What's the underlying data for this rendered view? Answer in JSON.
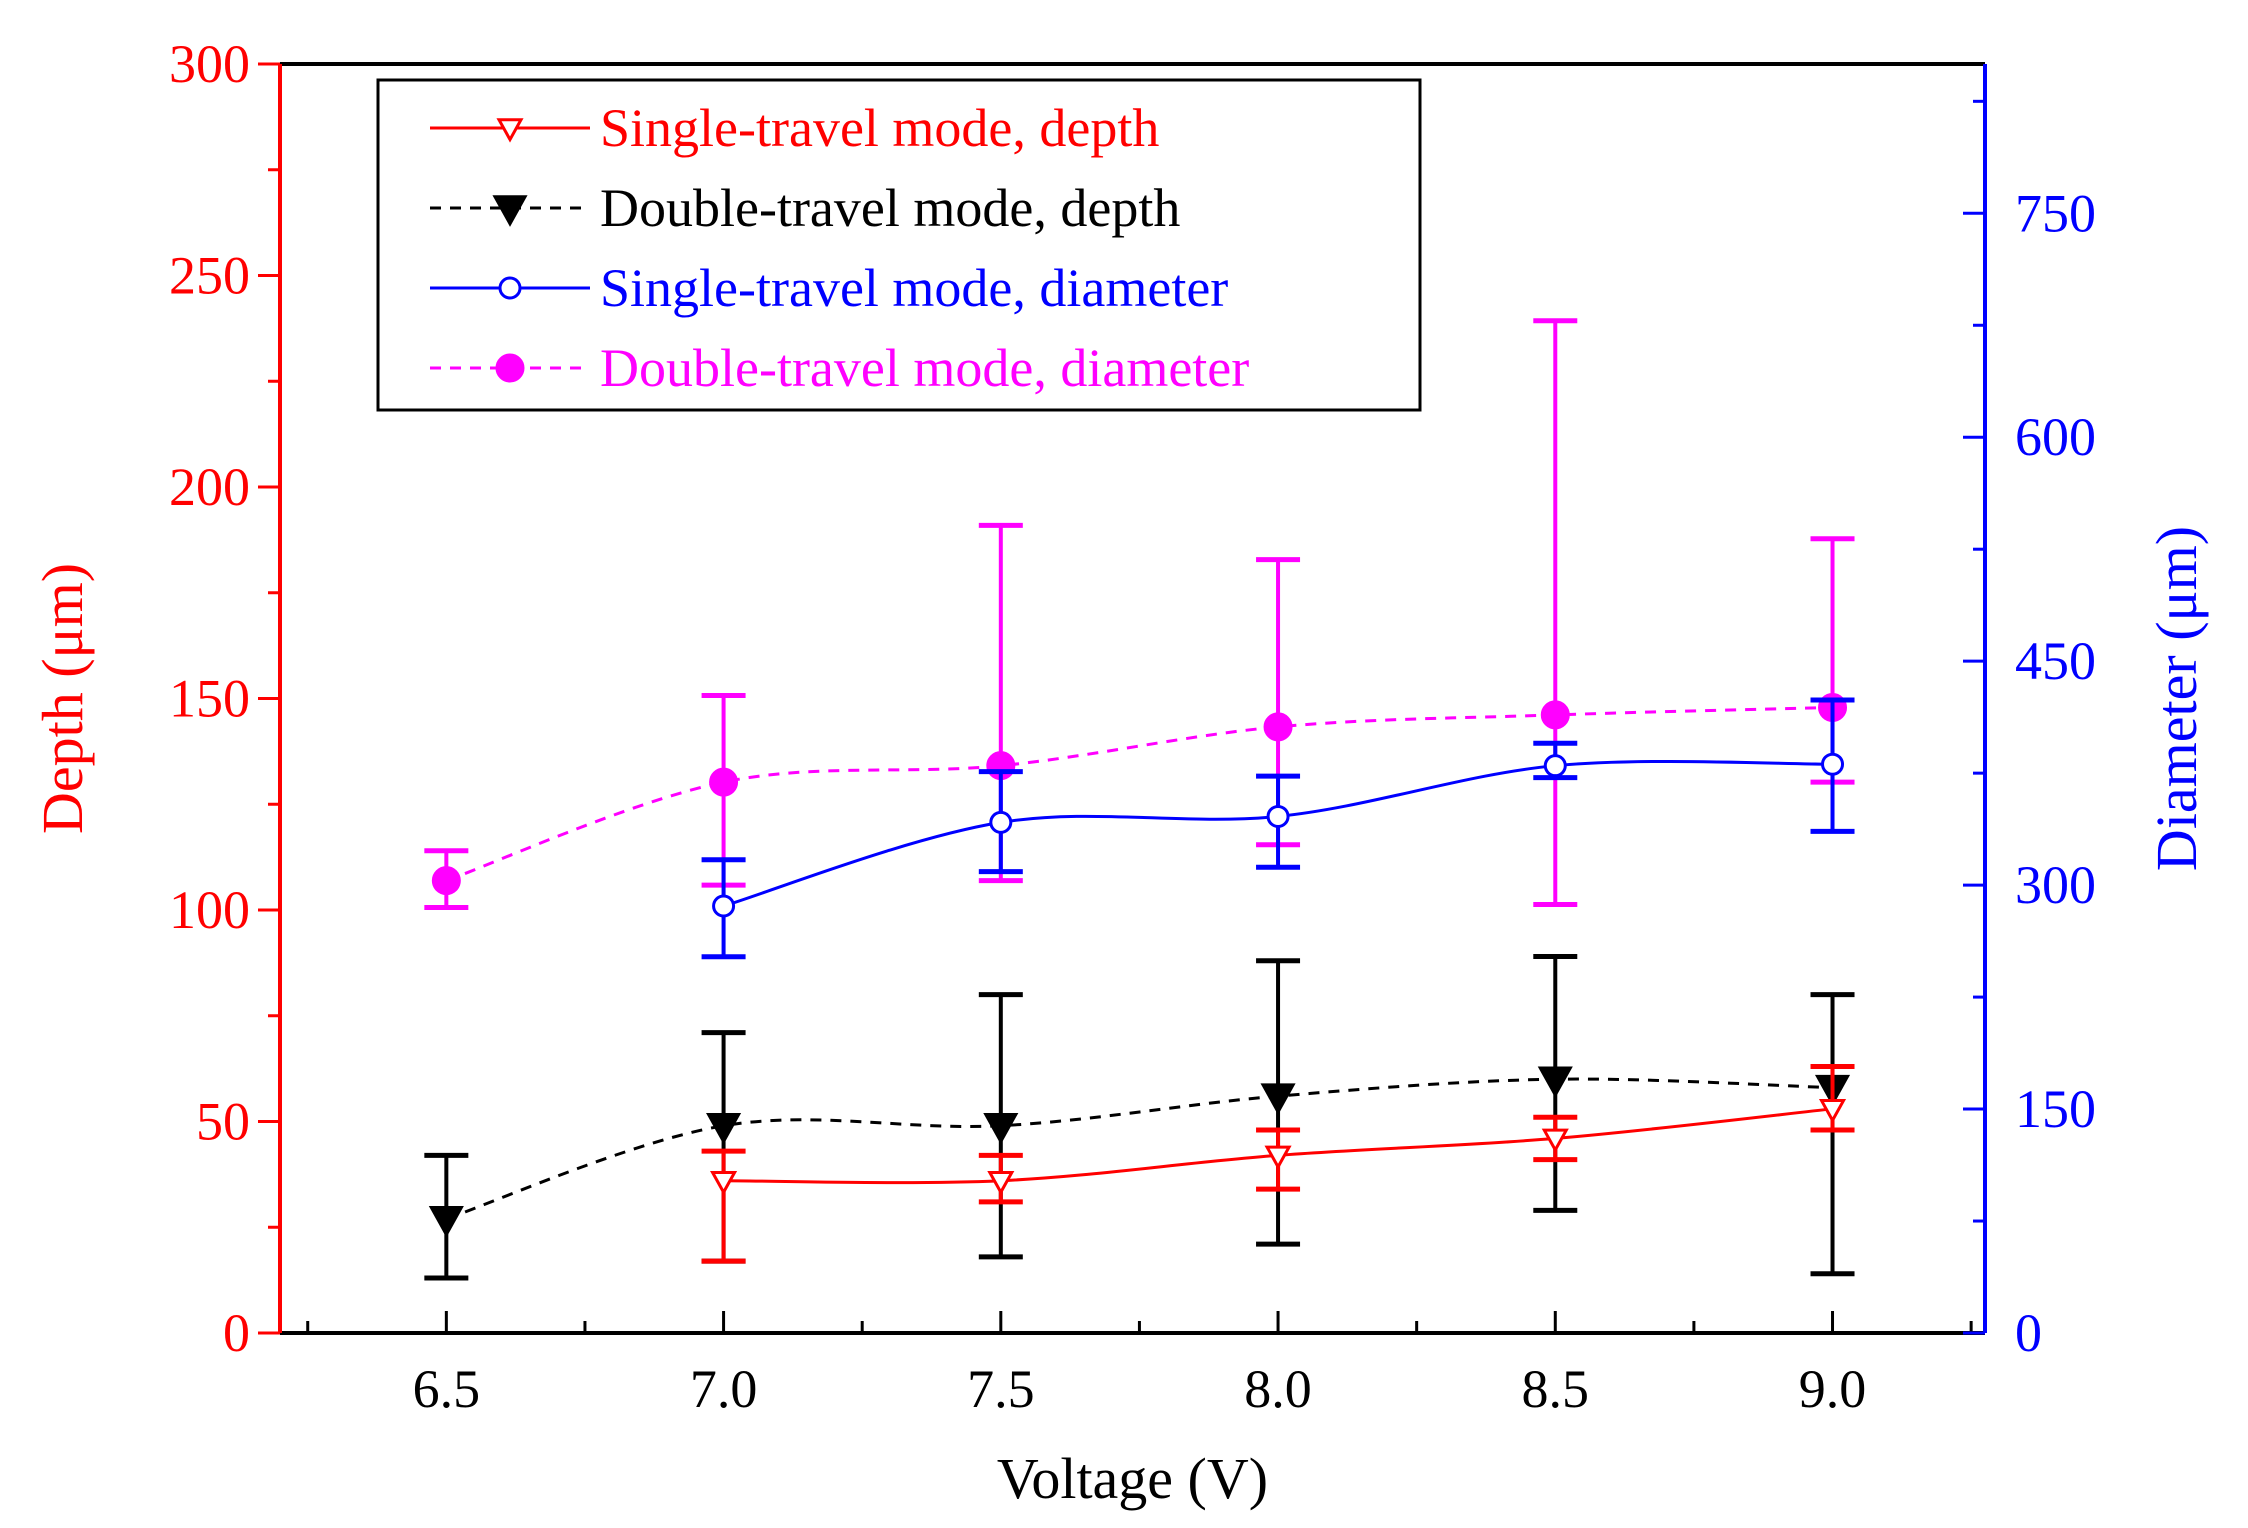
{
  "chart_data": {
    "type": "line",
    "x": [
      6.5,
      7.0,
      7.5,
      8.0,
      8.5,
      9.0
    ],
    "xlabel": "Voltage (V)",
    "ylabel_left": "Depth (μm)",
    "ylabel_right": "Diameter (μm)",
    "xlim": [
      6.2,
      9.275
    ],
    "xticks": [
      6.5,
      7.0,
      7.5,
      8.0,
      8.5,
      9.0
    ],
    "xtick_labels": [
      "6.5",
      "7.0",
      "7.5",
      "8.0",
      "8.5",
      "9.0"
    ],
    "ylim_left": [
      0,
      300
    ],
    "yticks_left": [
      0,
      50,
      100,
      150,
      200,
      250,
      300
    ],
    "ylim_right": [
      0,
      850
    ],
    "yticks_right": [
      0,
      150,
      300,
      450,
      600,
      750
    ],
    "legend_position": "top-left",
    "grid": false,
    "colors": {
      "left_axis": "#ff0000",
      "right_axis": "#0000ff",
      "frame": "#000000"
    },
    "series": [
      {
        "name": "Single-travel mode, depth",
        "axis": "left",
        "color": "#ff0000",
        "line_style": "solid",
        "marker": "open-down-triangle",
        "x": [
          7.0,
          7.5,
          8.0,
          8.5,
          9.0
        ],
        "y": [
          36,
          36,
          42,
          46,
          53
        ],
        "err_low": [
          17,
          31,
          34,
          41,
          48
        ],
        "err_high": [
          43,
          42,
          48,
          51,
          63
        ]
      },
      {
        "name": "Double-travel mode, depth",
        "axis": "left",
        "color": "#000000",
        "line_style": "dashed",
        "marker": "filled-down-triangle",
        "x": [
          6.5,
          7.0,
          7.5,
          8.0,
          8.5,
          9.0
        ],
        "y": [
          27,
          49,
          49,
          56,
          60,
          58
        ],
        "err_low": [
          13,
          17,
          18,
          21,
          29,
          14
        ],
        "err_high": [
          42,
          71,
          80,
          88,
          89,
          80
        ]
      },
      {
        "name": "Single-travel mode, diameter",
        "axis": "right",
        "color": "#0000ff",
        "line_style": "solid",
        "marker": "open-circle",
        "x": [
          7.0,
          7.5,
          8.0,
          8.5,
          9.0
        ],
        "y": [
          286,
          342,
          346,
          380,
          381
        ],
        "err_low": [
          252,
          309,
          312,
          372,
          336
        ],
        "err_high": [
          317,
          376,
          373,
          395,
          424
        ]
      },
      {
        "name": "Double-travel mode, diameter",
        "axis": "right",
        "color": "#ff00ff",
        "line_style": "dashed",
        "marker": "filled-circle",
        "x": [
          6.5,
          7.0,
          7.5,
          8.0,
          8.5,
          9.0
        ],
        "y": [
          303,
          369,
          380,
          406,
          414,
          419
        ],
        "err_low": [
          285,
          300,
          303,
          327,
          287,
          369
        ],
        "err_high": [
          323,
          427,
          541,
          518,
          678,
          532
        ]
      }
    ]
  }
}
